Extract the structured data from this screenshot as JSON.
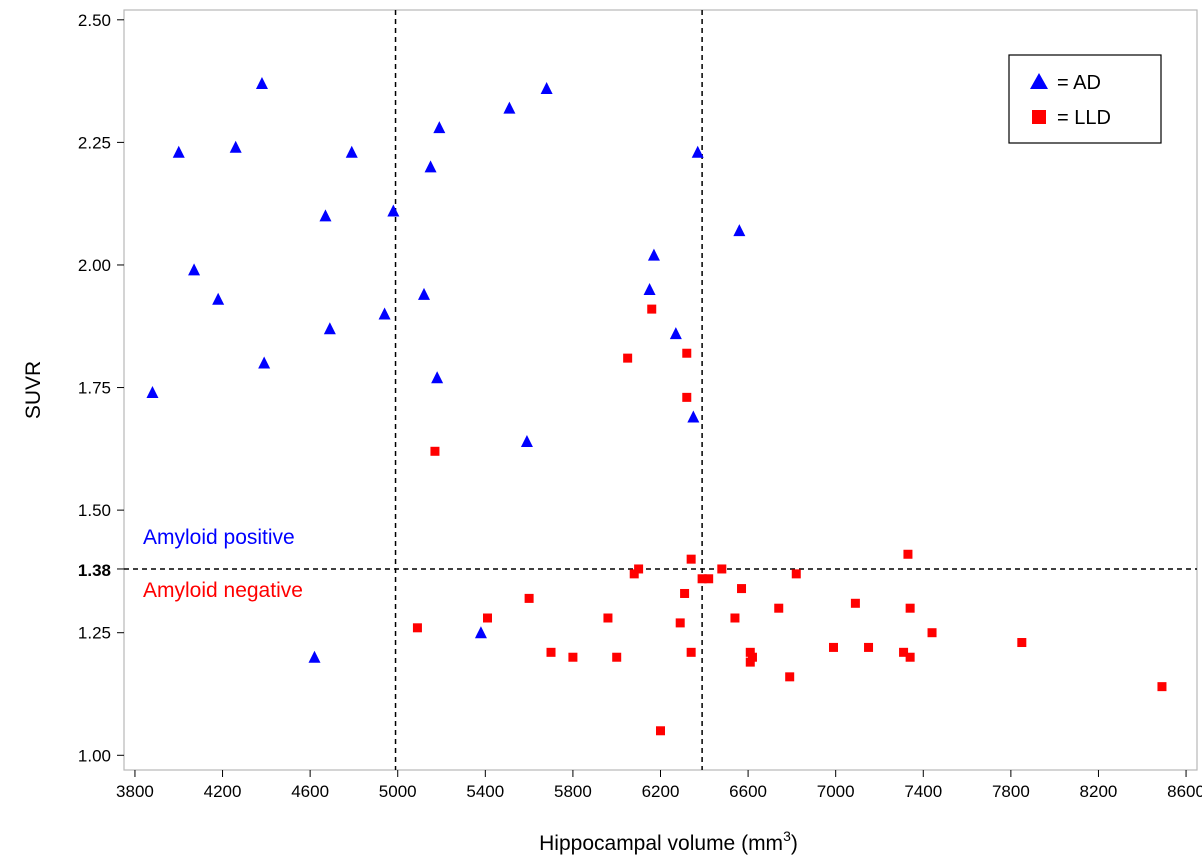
{
  "chart_data": {
    "type": "scatter",
    "xlabel": "Hippocampal volume (mm",
    "xlabel_sup": "3",
    "xlabel_close": ")",
    "ylabel": "SUVR",
    "xlim": [
      3750,
      8650
    ],
    "ylim": [
      0.97,
      2.52
    ],
    "x_ticks": [
      3800,
      4200,
      4600,
      5000,
      5400,
      5800,
      6200,
      6600,
      7000,
      7400,
      7800,
      8200,
      8600
    ],
    "y_ticks": [
      1.0,
      1.25,
      1.5,
      1.75,
      2.0,
      2.25,
      2.5
    ],
    "y_tick_labels": [
      "1.00",
      "1.25",
      "1.50",
      "1.75",
      "2.00",
      "2.25",
      "2.50"
    ],
    "threshold": {
      "y": 1.38,
      "label": "1.38"
    },
    "vertical_lines": [
      4990,
      6390
    ],
    "grid": false,
    "annotations": {
      "positive": {
        "text": "Amyloid positive",
        "color": "#0000ff"
      },
      "negative": {
        "text": "Amyloid negative",
        "color": "#ff0000"
      }
    },
    "legend": {
      "position": "top-right",
      "items": [
        {
          "marker": "triangle",
          "color": "#0000ff",
          "label": "= AD"
        },
        {
          "marker": "square",
          "color": "#ff0000",
          "label": "= LLD"
        }
      ]
    },
    "series": [
      {
        "name": "AD",
        "marker": "triangle",
        "color": "#0000ff",
        "points": [
          [
            3880,
            1.74
          ],
          [
            4000,
            2.23
          ],
          [
            4070,
            1.99
          ],
          [
            4180,
            1.93
          ],
          [
            4260,
            2.24
          ],
          [
            4380,
            2.37
          ],
          [
            4390,
            1.8
          ],
          [
            4620,
            1.2
          ],
          [
            4670,
            2.1
          ],
          [
            4690,
            1.87
          ],
          [
            4790,
            2.23
          ],
          [
            4940,
            1.9
          ],
          [
            4980,
            2.11
          ],
          [
            5120,
            1.94
          ],
          [
            5150,
            2.2
          ],
          [
            5180,
            1.77
          ],
          [
            5190,
            2.28
          ],
          [
            5380,
            1.25
          ],
          [
            5510,
            2.32
          ],
          [
            5590,
            1.64
          ],
          [
            5680,
            2.36
          ],
          [
            6150,
            1.95
          ],
          [
            6170,
            2.02
          ],
          [
            6270,
            1.86
          ],
          [
            6350,
            1.69
          ],
          [
            6370,
            2.23
          ],
          [
            6560,
            2.07
          ]
        ]
      },
      {
        "name": "LLD",
        "marker": "square",
        "color": "#ff0000",
        "points": [
          [
            5090,
            1.26
          ],
          [
            5170,
            1.62
          ],
          [
            5410,
            1.28
          ],
          [
            5600,
            1.32
          ],
          [
            5700,
            1.21
          ],
          [
            5800,
            1.2
          ],
          [
            5960,
            1.28
          ],
          [
            6000,
            1.2
          ],
          [
            6050,
            1.81
          ],
          [
            6080,
            1.37
          ],
          [
            6100,
            1.38
          ],
          [
            6160,
            1.91
          ],
          [
            6200,
            1.05
          ],
          [
            6290,
            1.27
          ],
          [
            6310,
            1.33
          ],
          [
            6320,
            1.82
          ],
          [
            6320,
            1.73
          ],
          [
            6340,
            1.21
          ],
          [
            6340,
            1.4
          ],
          [
            6390,
            1.36
          ],
          [
            6420,
            1.36
          ],
          [
            6480,
            1.38
          ],
          [
            6540,
            1.28
          ],
          [
            6570,
            1.34
          ],
          [
            6610,
            1.21
          ],
          [
            6610,
            1.19
          ],
          [
            6620,
            1.2
          ],
          [
            6740,
            1.3
          ],
          [
            6790,
            1.16
          ],
          [
            6820,
            1.37
          ],
          [
            6990,
            1.22
          ],
          [
            7090,
            1.31
          ],
          [
            7150,
            1.22
          ],
          [
            7310,
            1.21
          ],
          [
            7330,
            1.41
          ],
          [
            7340,
            1.3
          ],
          [
            7340,
            1.2
          ],
          [
            7440,
            1.25
          ],
          [
            7850,
            1.23
          ],
          [
            8490,
            1.14
          ]
        ]
      }
    ]
  }
}
